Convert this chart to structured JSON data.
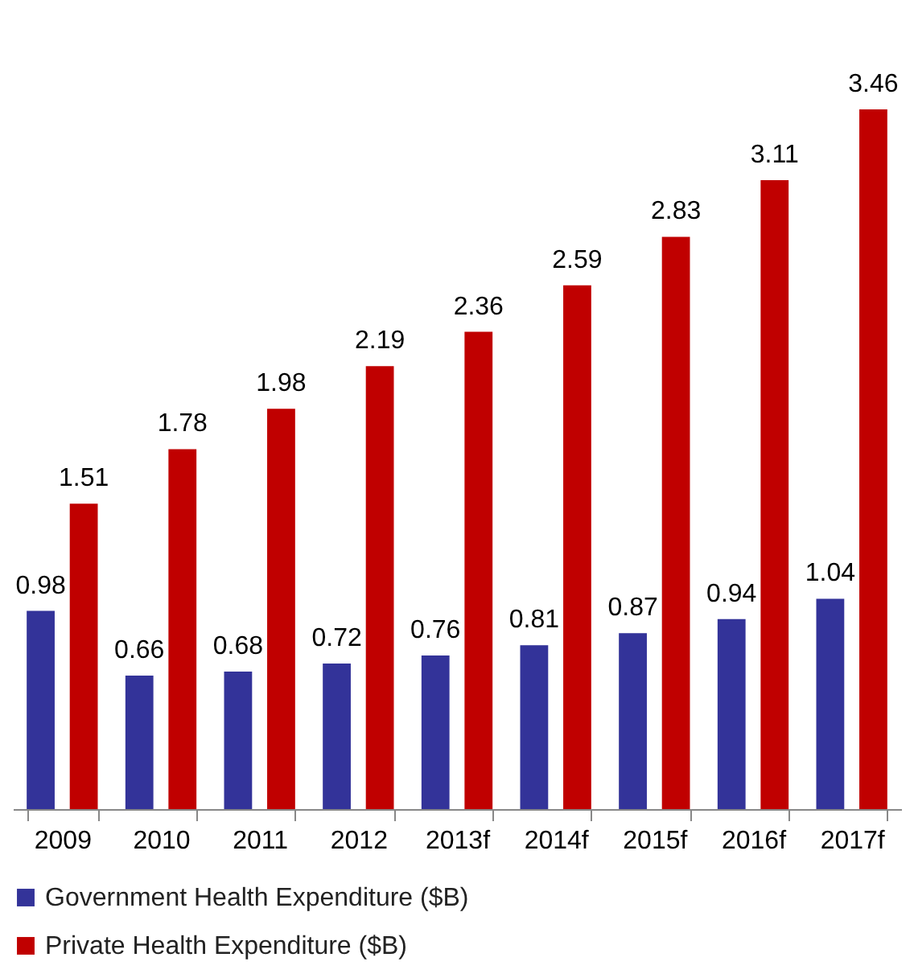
{
  "chart_data": {
    "type": "bar",
    "categories": [
      "2009",
      "2010",
      "2011",
      "2012",
      "2013f",
      "2014f",
      "2015f",
      "2016f",
      "2017f"
    ],
    "series": [
      {
        "name": "Government Health Expenditure ($B)",
        "color": "#333399",
        "values": [
          0.98,
          0.66,
          0.68,
          0.72,
          0.76,
          0.81,
          0.87,
          0.94,
          1.04
        ]
      },
      {
        "name": "Private Health Expenditure ($B)",
        "color": "#c00000",
        "values": [
          1.51,
          1.78,
          1.98,
          2.19,
          2.36,
          2.59,
          2.83,
          3.11,
          3.46
        ]
      }
    ],
    "data_labels": true,
    "legend": "bottom",
    "tick_labels": "x"
  }
}
